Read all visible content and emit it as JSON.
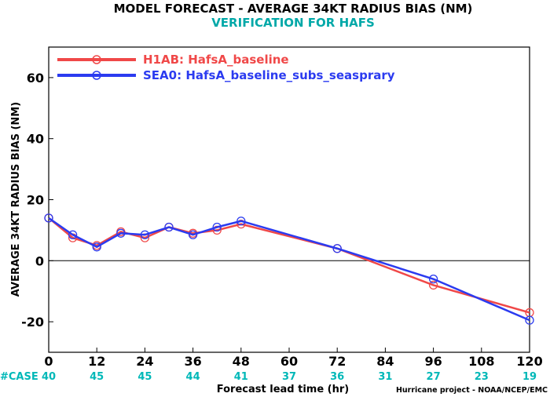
{
  "chart_data": {
    "type": "line",
    "title": "MODEL FORECAST - AVERAGE 34KT RADIUS BIAS (NM)",
    "subtitle": "VERIFICATION FOR HAFS",
    "xlabel": "Forecast lead time (hr)",
    "ylabel": "AVERAGE 34KT RADIUS BIAS (NM)",
    "xlim": [
      0,
      120
    ],
    "ylim": [
      -30,
      70
    ],
    "x_ticks": [
      0,
      12,
      24,
      36,
      48,
      60,
      72,
      84,
      96,
      108,
      120
    ],
    "x_tick_labels": [
      "0",
      "12",
      "24",
      "36",
      "48",
      "60",
      "72",
      "84",
      "96",
      "108",
      "120"
    ],
    "y_ticks": [
      -20,
      0,
      20,
      40,
      60
    ],
    "y_tick_labels": [
      "-20",
      "0",
      "20",
      "40",
      "60"
    ],
    "zero_line": true,
    "grid": false,
    "legend_position": "top-left",
    "case_label": "#CASE",
    "case_x": [
      0,
      12,
      24,
      36,
      48,
      60,
      72,
      84,
      96,
      108,
      120
    ],
    "case_counts": [
      "40",
      "45",
      "45",
      "44",
      "41",
      "37",
      "36",
      "31",
      "27",
      "23",
      "19"
    ],
    "credit": "Hurricane project - NOAA/NCEP/EMC",
    "series": [
      {
        "name": "H1AB: HafsA_baseline",
        "color": "#f04848",
        "x": [
          0,
          6,
          12,
          18,
          24,
          30,
          36,
          42,
          48,
          72,
          96,
          120
        ],
        "y": [
          14,
          7.5,
          5,
          9.5,
          7.5,
          11,
          9,
          10,
          12,
          4,
          -8,
          -17
        ]
      },
      {
        "name": "SEA0: HafsA_baseline_subs_seasprary",
        "color": "#2b3bf0",
        "x": [
          0,
          6,
          12,
          18,
          24,
          30,
          36,
          42,
          48,
          72,
          96,
          120
        ],
        "y": [
          14,
          8.5,
          4.5,
          9,
          8.5,
          11,
          8.5,
          11,
          13,
          4,
          -6,
          -19.5
        ]
      }
    ]
  }
}
